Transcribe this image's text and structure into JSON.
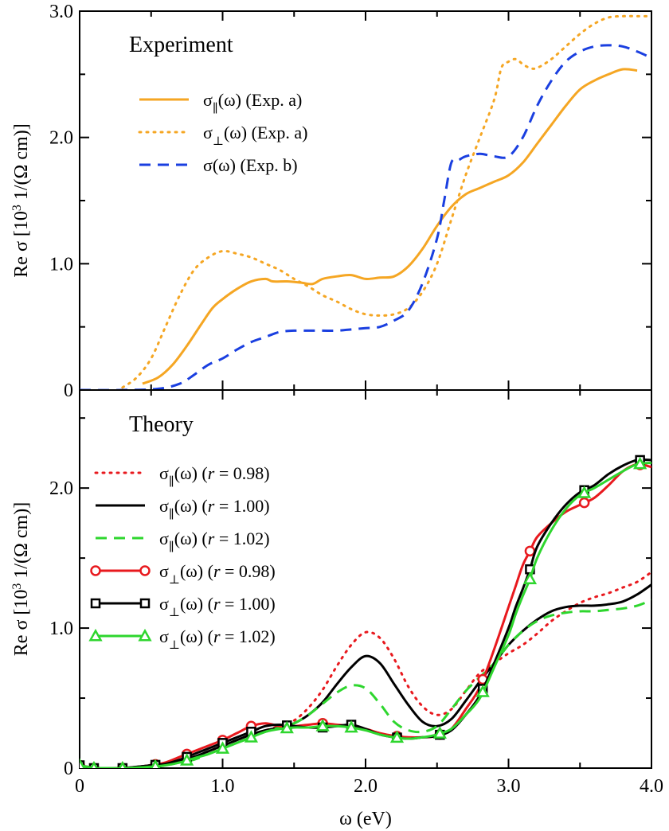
{
  "chart_data": [
    {
      "type": "line",
      "panel": "top",
      "title": "Experiment",
      "xlabel": "",
      "ylabel": "Re σ [10³ 1/(Ω cm)]",
      "xlim": [
        0,
        4.0
      ],
      "ylim": [
        0,
        3.0
      ],
      "yticks": [
        {
          "value": 0,
          "label": "0"
        },
        {
          "value": 1.0,
          "label": "1.0"
        },
        {
          "value": 2.0,
          "label": "2.0"
        },
        {
          "value": 3.0,
          "label": "3.0"
        }
      ],
      "xticks": [
        0,
        0.5,
        1.0,
        1.5,
        2.0,
        2.5,
        3.0,
        3.5,
        4.0
      ],
      "legend_position": "top-left",
      "series": [
        {
          "name": "σ∥(ω) (Exp. a)",
          "legend_main": "σ",
          "legend_sub": "∥",
          "legend_rest": "(ω) (Exp. a)",
          "color": "#f5a623",
          "style": "solid",
          "marker": "none",
          "x": [
            0.44,
            0.55,
            0.65,
            0.75,
            0.85,
            0.93,
            1.0,
            1.1,
            1.2,
            1.3,
            1.35,
            1.45,
            1.55,
            1.63,
            1.7,
            1.8,
            1.9,
            2.0,
            2.1,
            2.2,
            2.3,
            2.4,
            2.5,
            2.6,
            2.7,
            2.8,
            2.9,
            3.0,
            3.1,
            3.2,
            3.3,
            3.4,
            3.5,
            3.6,
            3.7,
            3.8,
            3.9
          ],
          "y": [
            0.05,
            0.1,
            0.2,
            0.35,
            0.52,
            0.65,
            0.72,
            0.8,
            0.86,
            0.88,
            0.86,
            0.86,
            0.85,
            0.84,
            0.88,
            0.9,
            0.91,
            0.88,
            0.89,
            0.9,
            0.98,
            1.12,
            1.3,
            1.45,
            1.55,
            1.6,
            1.65,
            1.7,
            1.8,
            1.95,
            2.1,
            2.25,
            2.38,
            2.45,
            2.5,
            2.54,
            2.53
          ]
        },
        {
          "name": "σ⊥(ω) (Exp. a)",
          "legend_main": "σ",
          "legend_sub": "⊥",
          "legend_rest": "(ω) (Exp. a)",
          "color": "#f5a623",
          "style": "dotted",
          "marker": "none",
          "x": [
            0.3,
            0.4,
            0.5,
            0.6,
            0.7,
            0.8,
            0.9,
            1.0,
            1.1,
            1.2,
            1.3,
            1.4,
            1.5,
            1.6,
            1.7,
            1.8,
            1.9,
            2.0,
            2.1,
            2.2,
            2.3,
            2.4,
            2.5,
            2.6,
            2.7,
            2.8,
            2.9,
            2.95,
            3.0,
            3.05,
            3.1,
            3.15,
            3.2,
            3.3,
            3.4,
            3.5,
            3.6,
            3.7,
            3.8,
            3.9,
            4.0
          ],
          "y": [
            0.02,
            0.1,
            0.25,
            0.5,
            0.75,
            0.95,
            1.05,
            1.1,
            1.08,
            1.05,
            1.0,
            0.95,
            0.88,
            0.82,
            0.75,
            0.7,
            0.64,
            0.6,
            0.59,
            0.6,
            0.65,
            0.78,
            1.0,
            1.35,
            1.7,
            2.0,
            2.3,
            2.55,
            2.6,
            2.62,
            2.58,
            2.55,
            2.55,
            2.62,
            2.72,
            2.82,
            2.9,
            2.95,
            2.96,
            2.96,
            2.96
          ]
        },
        {
          "name": "σ(ω) (Exp. b)",
          "legend_main": "σ",
          "legend_sub": "",
          "legend_rest": "(ω) (Exp. b)",
          "color": "#1a3fe0",
          "style": "dashed",
          "marker": "none",
          "x": [
            0,
            0.3,
            0.55,
            0.7,
            0.8,
            0.9,
            1.0,
            1.1,
            1.2,
            1.3,
            1.4,
            1.5,
            1.6,
            1.7,
            1.8,
            1.9,
            2.0,
            2.1,
            2.2,
            2.3,
            2.4,
            2.5,
            2.55,
            2.6,
            2.65,
            2.7,
            2.8,
            2.9,
            3.0,
            3.1,
            3.2,
            3.3,
            3.4,
            3.5,
            3.6,
            3.7,
            3.8,
            3.9,
            4.0
          ],
          "y": [
            0,
            0,
            0.01,
            0.05,
            0.12,
            0.2,
            0.25,
            0.32,
            0.38,
            0.42,
            0.46,
            0.47,
            0.47,
            0.47,
            0.47,
            0.48,
            0.49,
            0.5,
            0.55,
            0.63,
            0.85,
            1.2,
            1.5,
            1.8,
            1.82,
            1.85,
            1.87,
            1.85,
            1.85,
            2.0,
            2.25,
            2.45,
            2.6,
            2.68,
            2.72,
            2.73,
            2.72,
            2.68,
            2.63
          ]
        }
      ]
    },
    {
      "type": "line",
      "panel": "bottom",
      "title": "Theory",
      "xlabel": "ω (eV)",
      "ylabel": "Re σ [10³ 1/(Ω cm)]",
      "xlim": [
        0,
        4.0
      ],
      "ylim": [
        0,
        2.7
      ],
      "yticks": [
        {
          "value": 0,
          "label": "0"
        },
        {
          "value": 1.0,
          "label": "1.0"
        },
        {
          "value": 2.0,
          "label": "2.0"
        }
      ],
      "xticks": [
        {
          "value": 0,
          "label": "0"
        },
        {
          "value": 0.5,
          "label": ""
        },
        {
          "value": 1.0,
          "label": "1.0"
        },
        {
          "value": 1.5,
          "label": ""
        },
        {
          "value": 2.0,
          "label": "2.0"
        },
        {
          "value": 2.5,
          "label": ""
        },
        {
          "value": 3.0,
          "label": "3.0"
        },
        {
          "value": 3.5,
          "label": ""
        },
        {
          "value": 4.0,
          "label": "4.0"
        }
      ],
      "legend_position": "top-left",
      "series": [
        {
          "name": "σ∥(ω) (r = 0.98)",
          "legend_main": "σ",
          "legend_sub": "∥",
          "legend_pre": "(ω) (",
          "legend_var": "r",
          "legend_val": " = 0.98)",
          "color": "#e8191e",
          "style": "dotted",
          "marker": "none",
          "x": [
            0,
            0.3,
            0.5,
            0.6,
            0.7,
            0.8,
            0.9,
            1.0,
            1.1,
            1.2,
            1.3,
            1.4,
            1.5,
            1.6,
            1.7,
            1.8,
            1.9,
            2.0,
            2.1,
            2.2,
            2.3,
            2.4,
            2.5,
            2.6,
            2.7,
            2.8,
            2.9,
            3.0,
            3.1,
            3.2,
            3.3,
            3.4,
            3.5,
            3.6,
            3.7,
            3.8,
            3.9,
            4.0
          ],
          "y": [
            0,
            0,
            0.02,
            0.03,
            0.05,
            0.08,
            0.12,
            0.16,
            0.2,
            0.24,
            0.27,
            0.3,
            0.34,
            0.43,
            0.56,
            0.73,
            0.88,
            0.97,
            0.93,
            0.78,
            0.58,
            0.44,
            0.38,
            0.42,
            0.55,
            0.68,
            0.75,
            0.82,
            0.88,
            0.96,
            1.05,
            1.12,
            1.18,
            1.22,
            1.25,
            1.29,
            1.33,
            1.4
          ]
        },
        {
          "name": "σ∥(ω) (r = 1.00)",
          "legend_main": "σ",
          "legend_sub": "∥",
          "legend_pre": "(ω) (",
          "legend_var": "r",
          "legend_val": " = 1.00)",
          "color": "#000000",
          "style": "solid",
          "marker": "none",
          "x": [
            0,
            0.3,
            0.5,
            0.6,
            0.7,
            0.8,
            0.9,
            1.0,
            1.1,
            1.2,
            1.3,
            1.4,
            1.5,
            1.6,
            1.7,
            1.8,
            1.9,
            2.0,
            2.1,
            2.2,
            2.3,
            2.4,
            2.5,
            2.6,
            2.7,
            2.8,
            2.9,
            3.0,
            3.1,
            3.2,
            3.3,
            3.4,
            3.5,
            3.6,
            3.7,
            3.8,
            3.9,
            4.0
          ],
          "y": [
            0,
            0,
            0.02,
            0.03,
            0.05,
            0.08,
            0.12,
            0.16,
            0.2,
            0.24,
            0.27,
            0.29,
            0.32,
            0.38,
            0.47,
            0.6,
            0.72,
            0.8,
            0.75,
            0.6,
            0.45,
            0.33,
            0.3,
            0.35,
            0.48,
            0.62,
            0.75,
            0.88,
            0.98,
            1.06,
            1.12,
            1.15,
            1.16,
            1.16,
            1.17,
            1.19,
            1.24,
            1.31
          ]
        },
        {
          "name": "σ∥(ω) (r = 1.02)",
          "legend_main": "σ",
          "legend_sub": "∥",
          "legend_pre": "(ω) (",
          "legend_var": "r",
          "legend_val": " = 1.02)",
          "color": "#2ed62e",
          "style": "dashed",
          "marker": "none",
          "x": [
            0,
            0.3,
            0.5,
            0.6,
            0.7,
            0.8,
            0.9,
            1.0,
            1.1,
            1.2,
            1.3,
            1.4,
            1.5,
            1.6,
            1.7,
            1.8,
            1.9,
            2.0,
            2.1,
            2.2,
            2.3,
            2.4,
            2.5,
            2.6,
            2.7,
            2.8,
            2.9,
            3.0,
            3.1,
            3.2,
            3.3,
            3.4,
            3.5,
            3.6,
            3.7,
            3.8,
            3.9,
            4.0
          ],
          "y": [
            0,
            0,
            0.01,
            0.02,
            0.04,
            0.06,
            0.1,
            0.14,
            0.18,
            0.22,
            0.26,
            0.29,
            0.32,
            0.38,
            0.46,
            0.54,
            0.59,
            0.57,
            0.46,
            0.33,
            0.27,
            0.26,
            0.3,
            0.42,
            0.55,
            0.65,
            0.75,
            0.88,
            0.98,
            1.05,
            1.09,
            1.11,
            1.12,
            1.12,
            1.13,
            1.14,
            1.16,
            1.2
          ]
        },
        {
          "name": "σ⊥(ω) (r = 0.98)",
          "legend_main": "σ",
          "legend_sub": "⊥",
          "legend_pre": "(ω) (",
          "legend_var": "r",
          "legend_val": " = 0.98)",
          "color": "#e8191e",
          "style": "solid",
          "marker": "circle",
          "x": [
            0,
            0.05,
            0.1,
            0.15,
            0.3,
            0.5,
            0.6,
            0.7,
            0.8,
            0.9,
            1.0,
            1.1,
            1.2,
            1.3,
            1.4,
            1.5,
            1.6,
            1.7,
            1.8,
            1.9,
            2.0,
            2.1,
            2.2,
            2.3,
            2.4,
            2.5,
            2.6,
            2.7,
            2.8,
            2.9,
            3.0,
            3.05,
            3.1,
            3.15,
            3.2,
            3.3,
            3.4,
            3.5,
            3.6,
            3.7,
            3.8,
            3.9,
            4.0
          ],
          "y": [
            0.02,
            0.01,
            0.0,
            0.0,
            0.0,
            0.02,
            0.04,
            0.08,
            0.12,
            0.16,
            0.2,
            0.25,
            0.3,
            0.32,
            0.3,
            0.3,
            0.31,
            0.32,
            0.31,
            0.3,
            0.28,
            0.25,
            0.23,
            0.22,
            0.22,
            0.23,
            0.28,
            0.42,
            0.58,
            0.85,
            1.15,
            1.3,
            1.45,
            1.55,
            1.65,
            1.75,
            1.83,
            1.88,
            1.93,
            2.02,
            2.12,
            2.17,
            2.15
          ]
        },
        {
          "name": "σ⊥(ω) (r = 1.00)",
          "legend_main": "σ",
          "legend_sub": "⊥",
          "legend_pre": "(ω) (",
          "legend_var": "r",
          "legend_val": " = 1.00)",
          "color": "#000000",
          "style": "solid",
          "marker": "square",
          "x": [
            0,
            0.05,
            0.1,
            0.15,
            0.3,
            0.5,
            0.6,
            0.7,
            0.8,
            0.9,
            1.0,
            1.1,
            1.2,
            1.3,
            1.4,
            1.5,
            1.6,
            1.7,
            1.8,
            1.9,
            2.0,
            2.1,
            2.2,
            2.3,
            2.4,
            2.5,
            2.6,
            2.7,
            2.8,
            2.9,
            3.0,
            3.05,
            3.1,
            3.15,
            3.2,
            3.3,
            3.4,
            3.5,
            3.6,
            3.7,
            3.8,
            3.9,
            4.0
          ],
          "y": [
            0.02,
            0.01,
            0.0,
            0.0,
            0.0,
            0.02,
            0.03,
            0.06,
            0.1,
            0.14,
            0.18,
            0.22,
            0.26,
            0.3,
            0.31,
            0.3,
            0.29,
            0.29,
            0.3,
            0.31,
            0.28,
            0.24,
            0.22,
            0.21,
            0.22,
            0.23,
            0.27,
            0.38,
            0.52,
            0.75,
            1.0,
            1.15,
            1.28,
            1.42,
            1.58,
            1.75,
            1.88,
            1.97,
            2.02,
            2.1,
            2.16,
            2.2,
            2.2
          ]
        },
        {
          "name": "σ⊥(ω) (r = 1.02)",
          "legend_main": "σ",
          "legend_sub": "⊥",
          "legend_pre": "(ω) (",
          "legend_var": "r",
          "legend_val": " = 1.02)",
          "color": "#2ed62e",
          "style": "solid",
          "marker": "triangle",
          "x": [
            0,
            0.05,
            0.1,
            0.15,
            0.3,
            0.5,
            0.6,
            0.7,
            0.8,
            0.9,
            1.0,
            1.1,
            1.2,
            1.3,
            1.4,
            1.5,
            1.6,
            1.7,
            1.8,
            1.9,
            2.0,
            2.1,
            2.2,
            2.3,
            2.4,
            2.5,
            2.6,
            2.7,
            2.8,
            2.9,
            3.0,
            3.05,
            3.1,
            3.15,
            3.2,
            3.3,
            3.4,
            3.5,
            3.6,
            3.7,
            3.8,
            3.9,
            4.0
          ],
          "y": [
            0.02,
            0.01,
            0.0,
            0.0,
            0.0,
            0.01,
            0.02,
            0.04,
            0.07,
            0.1,
            0.14,
            0.18,
            0.22,
            0.26,
            0.28,
            0.29,
            0.29,
            0.3,
            0.3,
            0.29,
            0.27,
            0.24,
            0.22,
            0.21,
            0.22,
            0.24,
            0.28,
            0.38,
            0.5,
            0.72,
            0.95,
            1.1,
            1.23,
            1.35,
            1.5,
            1.7,
            1.85,
            1.95,
            2.0,
            2.06,
            2.12,
            2.17,
            2.18
          ]
        }
      ],
      "markers": {
        "circle_x": [
          0,
          0.1,
          0.3,
          0.53,
          0.75,
          1.0,
          1.2,
          1.45,
          1.7,
          1.9,
          2.22,
          2.52,
          2.82,
          3.15,
          3.53,
          3.92
        ],
        "square_x": [
          0,
          0.1,
          0.3,
          0.53,
          0.75,
          1.0,
          1.2,
          1.45,
          1.7,
          1.9,
          2.22,
          2.52,
          2.82,
          3.15,
          3.53,
          3.92
        ],
        "triangle_x": [
          0,
          0.1,
          0.3,
          0.53,
          0.75,
          1.0,
          1.2,
          1.45,
          1.7,
          1.9,
          2.22,
          2.52,
          2.82,
          3.15,
          3.53,
          3.92
        ]
      }
    }
  ]
}
